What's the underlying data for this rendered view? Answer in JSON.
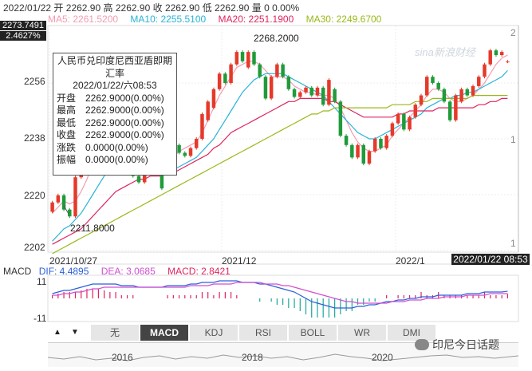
{
  "header": {
    "date": "2022/01/22",
    "open_label": "开",
    "open": "2262.90",
    "high_label": "高",
    "high": "2262.90",
    "close_label": "收",
    "close": "2262.90",
    "low_label": "低",
    "low": "2262.90",
    "vol_label": "量",
    "vol": "0",
    "pct": "0.00%"
  },
  "ma": {
    "ma5": "MA5: 2261.5200",
    "ma10": "MA10: 2255.5100",
    "ma20": "MA20: 2251.1900",
    "ma30": "MA30: 2249.6700",
    "colors": {
      "ma5": "#f29cb1",
      "ma10": "#29b3d8",
      "ma20": "#e0245e",
      "ma30": "#9ab819"
    }
  },
  "flags": {
    "price": "2273.7491",
    "pct": "2.4627%"
  },
  "y_labels": [
    "2256",
    "2238",
    "2220",
    "2202"
  ],
  "right_labels": [
    "2",
    "1",
    "1"
  ],
  "annotations": {
    "high": "2268.2000",
    "low": "2211.8000"
  },
  "tooltip": {
    "title_line1": "人民币兑印度尼西亚盾即期",
    "title_line2": "汇率",
    "datetime": "2022/01/22/六08:53",
    "rows": [
      {
        "k": "开盘",
        "v": "2262.9000(0.00%)"
      },
      {
        "k": "最高",
        "v": "2262.9000(0.00%)"
      },
      {
        "k": "最低",
        "v": "2262.9000(0.00%)"
      },
      {
        "k": "收盘",
        "v": "2262.9000(0.00%)"
      },
      {
        "k": "涨跌",
        "v": "0.0000(0.00%)"
      },
      {
        "k": "振幅",
        "v": "0.0000(0.00%)"
      }
    ]
  },
  "watermark": "sina新浪财经",
  "x_labels": [
    "2021/10/27",
    "2021/12",
    "2022/1"
  ],
  "date_flag": "2022/01/22 08:53",
  "macd": {
    "label": "MACD",
    "dif": "DIF: 4.4895",
    "dea": "DEA: 3.0685",
    "macd": "MACD: 2.8421",
    "y_top": "11",
    "y_bottom": "-11",
    "colors": {
      "dif": "#2b5fd9",
      "dea": "#d14fd1",
      "macd": "#e0245e"
    }
  },
  "tabs": [
    "无",
    "MACD",
    "KDJ",
    "RSI",
    "BOLL",
    "WR",
    "DMI"
  ],
  "active_tab": "MACD",
  "arrows": {
    "up": "▲",
    "down": "▼"
  },
  "years": [
    "2016",
    "2018",
    "2020"
  ],
  "brand": "印尼今日话题",
  "chart_data": {
    "type": "candlestick",
    "y_range": [
      2202,
      2274
    ],
    "y_ticks": [
      2202,
      2220,
      2238,
      2256
    ],
    "x_ticks": [
      "2021/10/27",
      "2021/12",
      "2022/1"
    ],
    "candles": [
      {
        "o": 2214.5,
        "c": 2217.5
      },
      {
        "o": 2217.5,
        "c": 2219.8
      },
      {
        "o": 2219.8,
        "c": 2215.2
      },
      {
        "o": 2215.2,
        "c": 2213.0
      },
      {
        "o": 2213.0,
        "c": 2225.6
      },
      {
        "o": 2225.6,
        "c": 2227.5
      },
      {
        "o": 2227.5,
        "c": 2235.8
      },
      {
        "o": 2235.8,
        "c": 2243.0
      },
      {
        "o": 2243.0,
        "c": 2240.0
      },
      {
        "o": 2240.0,
        "c": 2238.0
      },
      {
        "o": 2238.0,
        "c": 2232.0
      },
      {
        "o": 2232.0,
        "c": 2229.0
      },
      {
        "o": 2229.0,
        "c": 2233.0
      },
      {
        "o": 2233.0,
        "c": 2232.0
      },
      {
        "o": 2232.0,
        "c": 2226.0
      },
      {
        "o": 2226.0,
        "c": 2224.0
      },
      {
        "o": 2224.0,
        "c": 2229.0
      },
      {
        "o": 2229.0,
        "c": 2229.5
      },
      {
        "o": 2229.5,
        "c": 2227.5
      },
      {
        "o": 2227.5,
        "c": 2222.0
      },
      {
        "o": 2232.0,
        "c": 2233.0
      },
      {
        "o": 2231.5,
        "c": 2236.0
      },
      {
        "o": 2236.0,
        "c": 2233.5
      },
      {
        "o": 2233.5,
        "c": 2232.5
      },
      {
        "o": 2232.5,
        "c": 2235.0
      },
      {
        "o": 2235.0,
        "c": 2238.0
      },
      {
        "o": 2238.0,
        "c": 2246.0
      },
      {
        "o": 2244.0,
        "c": 2250.0
      },
      {
        "o": 2248.0,
        "c": 2254.0
      },
      {
        "o": 2254.0,
        "c": 2259.0
      },
      {
        "o": 2259.0,
        "c": 2256.0
      },
      {
        "o": 2256.0,
        "c": 2262.0
      },
      {
        "o": 2262.0,
        "c": 2266.0
      },
      {
        "o": 2266.0,
        "c": 2263.0
      },
      {
        "o": 2261.0,
        "c": 2266.0
      },
      {
        "o": 2266.0,
        "c": 2262.0
      },
      {
        "o": 2262.0,
        "c": 2258.0
      },
      {
        "o": 2258.0,
        "c": 2251.0
      },
      {
        "o": 2251.0,
        "c": 2258.0
      },
      {
        "o": 2258.0,
        "c": 2262.0
      },
      {
        "o": 2262.0,
        "c": 2258.0
      },
      {
        "o": 2258.0,
        "c": 2254.0
      },
      {
        "o": 2254.0,
        "c": 2251.5
      },
      {
        "o": 2251.5,
        "c": 2253.0
      },
      {
        "o": 2253.0,
        "c": 2254.5
      },
      {
        "o": 2254.5,
        "c": 2252.0
      },
      {
        "o": 2252.0,
        "c": 2254.5
      },
      {
        "o": 2254.5,
        "c": 2249.0
      },
      {
        "o": 2249.0,
        "c": 2257.0
      },
      {
        "o": 2254.0,
        "c": 2250.0
      },
      {
        "o": 2250.0,
        "c": 2239.0
      },
      {
        "o": 2239.0,
        "c": 2236.0
      },
      {
        "o": 2236.0,
        "c": 2232.0
      },
      {
        "o": 2232.0,
        "c": 2236.0
      },
      {
        "o": 2236.0,
        "c": 2230.0
      },
      {
        "o": 2230.0,
        "c": 2234.0
      },
      {
        "o": 2234.0,
        "c": 2238.0
      },
      {
        "o": 2238.0,
        "c": 2235.0
      },
      {
        "o": 2235.0,
        "c": 2239.0
      },
      {
        "o": 2239.0,
        "c": 2243.0
      },
      {
        "o": 2243.0,
        "c": 2246.0
      },
      {
        "o": 2246.0,
        "c": 2241.0
      },
      {
        "o": 2241.0,
        "c": 2245.0
      },
      {
        "o": 2245.0,
        "c": 2249.0
      },
      {
        "o": 2249.0,
        "c": 2252.0
      },
      {
        "o": 2252.0,
        "c": 2258.0
      },
      {
        "o": 2258.0,
        "c": 2256.0
      },
      {
        "o": 2256.0,
        "c": 2254.0
      },
      {
        "o": 2254.0,
        "c": 2250.0
      },
      {
        "o": 2250.0,
        "c": 2244.0
      },
      {
        "o": 2244.0,
        "c": 2252.0
      },
      {
        "o": 2250.0,
        "c": 2254.0
      },
      {
        "o": 2254.0,
        "c": 2252.0
      },
      {
        "o": 2252.0,
        "c": 2255.0
      },
      {
        "o": 2255.0,
        "c": 2258.0
      },
      {
        "o": 2258.0,
        "c": 2262.0
      },
      {
        "o": 2262.0,
        "c": 2266.5
      },
      {
        "o": 2266.5,
        "c": 2265.0
      },
      {
        "o": 2265.0,
        "c": 2266.0
      },
      {
        "o": 2262.9,
        "c": 2262.9
      }
    ],
    "ma_series": [
      {
        "name": "MA5",
        "values": [
          2214,
          2216,
          2218,
          2217,
          2218,
          2221,
          2225,
          2230,
          2235,
          2238,
          2238,
          2236,
          2233,
          2231,
          2230,
          2228,
          2227,
          2228,
          2228,
          2227,
          2229,
          2232,
          2234,
          2235,
          2236,
          2237,
          2240,
          2244,
          2248,
          2252,
          2255,
          2258,
          2261,
          2262,
          2263,
          2263,
          2262,
          2260,
          2258,
          2258,
          2258,
          2257,
          2255,
          2254,
          2253,
          2253,
          2252,
          2252,
          2252,
          2251,
          2248,
          2244,
          2240,
          2237,
          2235,
          2234,
          2234,
          2235,
          2236,
          2239,
          2241,
          2243,
          2245,
          2247,
          2249,
          2252,
          2254,
          2254,
          2253,
          2251,
          2250,
          2250,
          2251,
          2252,
          2254,
          2256,
          2259,
          2262,
          2264,
          2265
        ]
      },
      {
        "name": "MA10",
        "values": [
          2205,
          2207,
          2209,
          2210,
          2212,
          2214,
          2217,
          2220,
          2223,
          2226,
          2229,
          2231,
          2232,
          2232,
          2232,
          2231,
          2230,
          2229,
          2228,
          2227,
          2227,
          2228,
          2229,
          2230,
          2231,
          2232,
          2234,
          2236,
          2238,
          2241,
          2244,
          2247,
          2250,
          2253,
          2255,
          2257,
          2258,
          2259,
          2259,
          2259,
          2259,
          2258,
          2257,
          2256,
          2255,
          2254,
          2253,
          2252,
          2250,
          2248,
          2246,
          2244,
          2242,
          2240,
          2239,
          2238,
          2238,
          2239,
          2240,
          2241,
          2242,
          2243,
          2244,
          2245,
          2246,
          2248,
          2249,
          2250,
          2251,
          2251,
          2252,
          2252,
          2253,
          2253,
          2254,
          2255,
          2256,
          2257,
          2258,
          2260
        ]
      },
      {
        "name": "MA20",
        "values": [
          2204,
          2205,
          2206,
          2207,
          2208,
          2209,
          2211,
          2213,
          2215,
          2217,
          2219,
          2221,
          2222,
          2223,
          2224,
          2225,
          2225,
          2226,
          2226,
          2226,
          2227,
          2227,
          2228,
          2229,
          2230,
          2231,
          2232,
          2233,
          2235,
          2236,
          2238,
          2240,
          2241,
          2242,
          2243,
          2244,
          2245,
          2246,
          2247,
          2248,
          2249,
          2250,
          2250,
          2251,
          2251,
          2251,
          2251,
          2251,
          2250,
          2250,
          2249,
          2248,
          2247,
          2246,
          2245,
          2245,
          2245,
          2245,
          2245,
          2245,
          2246,
          2246,
          2247,
          2247,
          2247,
          2247,
          2247,
          2248,
          2248,
          2248,
          2248,
          2248,
          2248,
          2248,
          2249,
          2249,
          2250,
          2250,
          2251,
          2251
        ]
      },
      {
        "name": "MA30",
        "values": [
          2201,
          2202,
          2203,
          2204,
          2205,
          2206,
          2207,
          2208,
          2209,
          2210,
          2211,
          2212,
          2213,
          2214,
          2215,
          2216,
          2217,
          2218,
          2219,
          2220,
          2221,
          2222,
          2223,
          2224,
          2225,
          2226,
          2227,
          2228,
          2229,
          2230,
          2231,
          2232,
          2233,
          2234,
          2235,
          2236,
          2237,
          2238,
          2239,
          2240,
          2241,
          2242,
          2243,
          2244,
          2245,
          2246,
          2246,
          2247,
          2247,
          2248,
          2248,
          2248,
          2248,
          2248,
          2248,
          2248,
          2248,
          2248,
          2248,
          2249,
          2249,
          2249,
          2249,
          2250,
          2250,
          2250,
          2251,
          2251,
          2251,
          2251,
          2251,
          2251,
          2251,
          2252,
          2252,
          2252,
          2252,
          2252,
          2252,
          2252
        ]
      }
    ],
    "macd_series": {
      "dif": [
        3,
        4,
        5,
        5,
        6,
        7,
        8,
        9,
        9,
        9,
        9,
        9,
        8,
        8,
        8,
        7,
        7,
        7,
        7,
        7,
        8,
        8,
        8,
        8,
        9,
        9,
        10,
        10,
        10,
        11,
        11,
        11,
        11,
        10,
        10,
        10,
        9,
        9,
        8,
        7,
        6,
        5,
        4,
        2,
        0,
        -2,
        -3,
        -4,
        -5,
        -6,
        -6,
        -6,
        -6,
        -5,
        -5,
        -4,
        -4,
        -3,
        -2,
        -2,
        -1,
        -1,
        0,
        0,
        1,
        1,
        1,
        2,
        2,
        2,
        2,
        2,
        3,
        3,
        3,
        4,
        4,
        4,
        4,
        4.5
      ],
      "dea": [
        2,
        2,
        3,
        3,
        4,
        4,
        5,
        6,
        6,
        7,
        7,
        7,
        7,
        7,
        7,
        7,
        7,
        7,
        7,
        7,
        7,
        7,
        7,
        7,
        8,
        8,
        8,
        8,
        9,
        9,
        9,
        9,
        10,
        10,
        10,
        10,
        10,
        9,
        9,
        9,
        8,
        8,
        7,
        6,
        5,
        4,
        3,
        2,
        1,
        0,
        -1,
        -2,
        -2,
        -3,
        -3,
        -3,
        -3,
        -3,
        -3,
        -2,
        -2,
        -2,
        -1,
        -1,
        -1,
        0,
        0,
        0,
        1,
        1,
        1,
        1,
        2,
        2,
        2,
        2,
        3,
        3,
        3,
        3
      ],
      "macd": [
        2,
        3,
        4,
        4,
        4,
        5,
        6,
        6,
        6,
        5,
        4,
        4,
        2,
        2,
        2,
        0,
        0,
        0,
        0,
        0,
        2,
        2,
        2,
        2,
        2,
        2,
        4,
        4,
        2,
        4,
        4,
        4,
        2,
        0,
        0,
        0,
        -2,
        0,
        -2,
        -4,
        -4,
        -6,
        -6,
        -8,
        -10,
        -12,
        -12,
        -12,
        -12,
        -12,
        -10,
        -8,
        -8,
        -4,
        -4,
        -2,
        -2,
        0,
        2,
        0,
        2,
        2,
        2,
        2,
        4,
        2,
        2,
        4,
        2,
        2,
        2,
        2,
        2,
        2,
        2,
        4,
        2,
        2,
        2,
        2.8
      ]
    }
  }
}
